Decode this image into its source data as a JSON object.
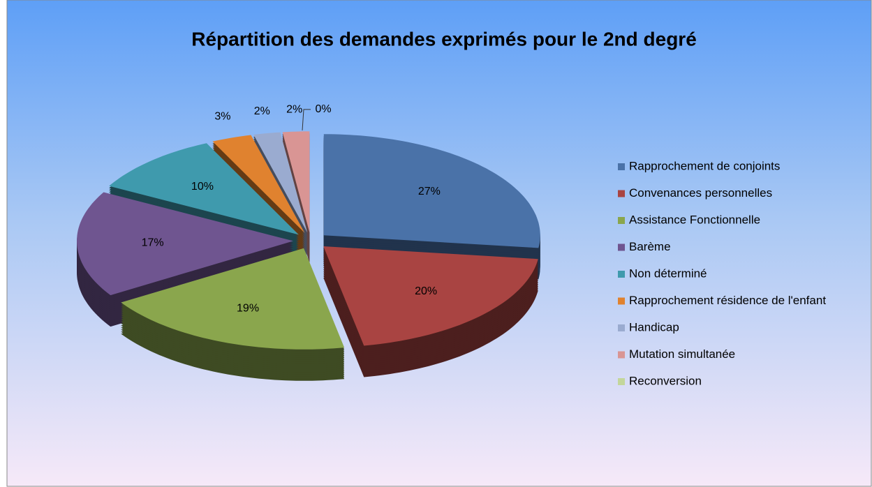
{
  "chart_data": {
    "type": "pie",
    "title": "Répartition des demandes exprimés pour le 2nd degré",
    "categories": [
      "Rapprochement de conjoints",
      "Convenances personnelles",
      "Assistance Fonctionnelle",
      "Barème",
      "Non déterminé",
      "Rapprochement résidence de l'enfant",
      "Handicap",
      "Mutation simultanée",
      "Reconversion"
    ],
    "values": [
      27,
      20,
      19,
      17,
      10,
      3,
      2,
      2,
      0
    ],
    "value_labels": [
      "27%",
      "20%",
      "19%",
      "17%",
      "10%",
      "3%",
      "2%",
      "2%",
      "0%"
    ],
    "colors": [
      "#4a72a8",
      "#a94442",
      "#8aa64d",
      "#6f5590",
      "#3f9aad",
      "#e0822f",
      "#9aabd0",
      "#d99594",
      "#c3d69b"
    ],
    "legend": "right"
  }
}
